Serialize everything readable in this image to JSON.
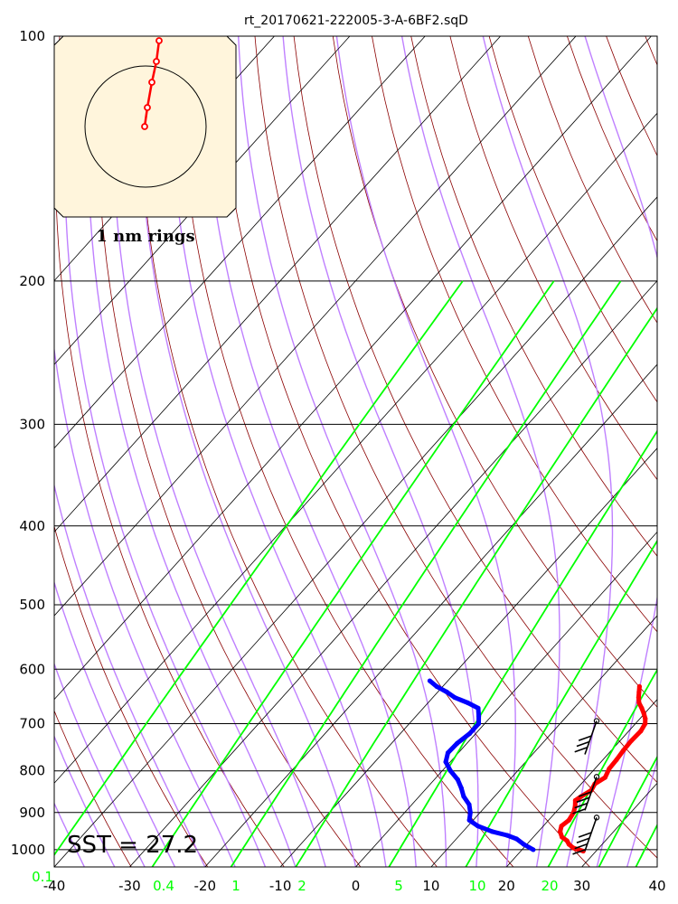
{
  "chart_data": {
    "type": "line",
    "title": "rt_20170621-222005-3-A-6BF2.sqD",
    "x_axis": {
      "range": [
        -40,
        40
      ],
      "tick_labels": [
        "-40",
        "-30",
        "-20",
        "-10",
        "0",
        "10",
        "20",
        "30",
        "40"
      ],
      "mixing_ratio_labels": [
        "0.1",
        "0.4",
        "1",
        "2",
        "5",
        "10",
        "20"
      ]
    },
    "y_axis": {
      "scale": "log",
      "pressure_labels": [
        "100",
        "200",
        "300",
        "400",
        "500",
        "600",
        "700",
        "800",
        "900",
        "1000"
      ],
      "range": [
        100,
        1050
      ]
    },
    "series": [
      {
        "color": "#ff0000",
        "points": [
          [
            1004,
            28.3
          ],
          [
            995,
            26.6
          ],
          [
            985,
            25.6
          ],
          [
            975,
            24.9
          ],
          [
            965,
            23.8
          ],
          [
            950,
            22.9
          ],
          [
            935,
            22.4
          ],
          [
            920,
            22.7
          ],
          [
            900,
            22.4
          ],
          [
            885,
            21.9
          ],
          [
            870,
            21.2
          ],
          [
            860,
            21.5
          ],
          [
            845,
            22.1
          ],
          [
            830,
            21.8
          ],
          [
            815,
            22.4
          ],
          [
            795,
            21.9
          ],
          [
            775,
            21.8
          ],
          [
            755,
            21.6
          ],
          [
            735,
            21.5
          ],
          [
            715,
            21.6
          ],
          [
            700,
            21.3
          ],
          [
            690,
            20.7
          ],
          [
            680,
            19.9
          ],
          [
            670,
            19.0
          ],
          [
            660,
            18.0
          ],
          [
            650,
            17.3
          ],
          [
            640,
            16.7
          ],
          [
            630,
            16.1
          ]
        ]
      },
      {
        "color": "#0000ff",
        "points": [
          [
            1000,
            21.5
          ],
          [
            985,
            19.6
          ],
          [
            970,
            18.0
          ],
          [
            960,
            16.3
          ],
          [
            950,
            13.9
          ],
          [
            935,
            11.3
          ],
          [
            920,
            9.5
          ],
          [
            900,
            8.7
          ],
          [
            880,
            7.6
          ],
          [
            860,
            5.9
          ],
          [
            840,
            4.6
          ],
          [
            820,
            3.1
          ],
          [
            800,
            1.1
          ],
          [
            780,
            -0.6
          ],
          [
            760,
            -1.4
          ],
          [
            740,
            -1.3
          ],
          [
            720,
            -0.8
          ],
          [
            700,
            -0.8
          ],
          [
            685,
            -1.7
          ],
          [
            670,
            -2.7
          ],
          [
            660,
            -4.7
          ],
          [
            650,
            -7.1
          ],
          [
            640,
            -8.8
          ],
          [
            630,
            -10.8
          ],
          [
            620,
            -12.4
          ]
        ]
      }
    ],
    "wind_barbs": [
      {
        "pressure": 700,
        "spd_kt": 30
      },
      {
        "pressure": 820,
        "spd_kt": 35
      },
      {
        "pressure": 920,
        "spd_kt": 35
      }
    ],
    "isotherm_color": "#000000",
    "dry_adiabat_color": "#8b0000",
    "moist_adiabat_color": "#bf80ff",
    "mixing_ratio_color": "#00ff00",
    "annotation": "SST = 27.2",
    "inset": {
      "caption": "1 nm rings",
      "background": "#fff5dc",
      "track_color": "#ff0000"
    }
  }
}
